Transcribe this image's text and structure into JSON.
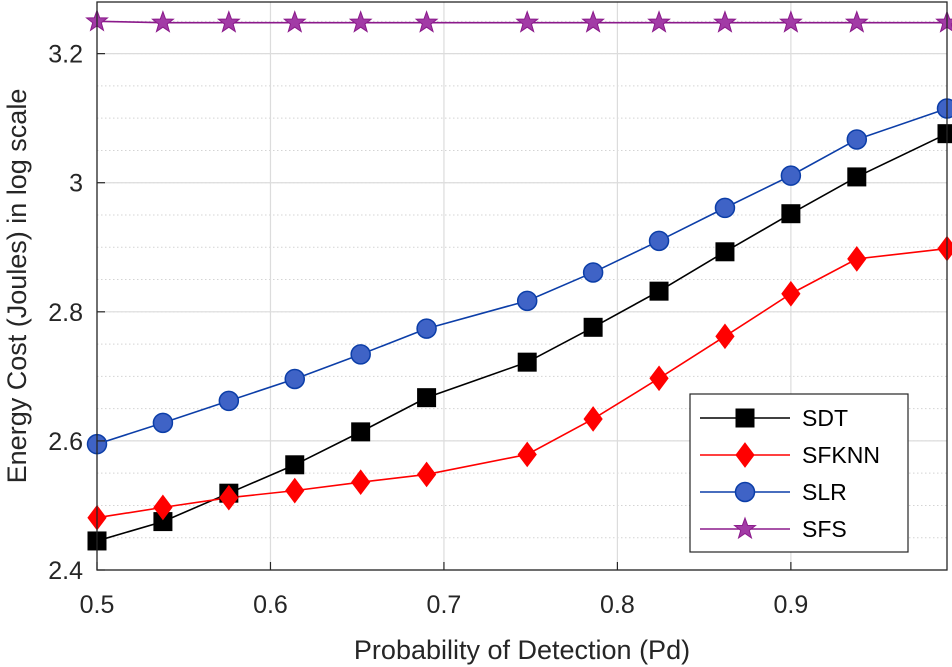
{
  "chart_data": {
    "type": "line",
    "title": "",
    "xlabel": "Probability of Detection (Pd)",
    "ylabel": "Energy Cost (Joules) in log scale",
    "xlim": [
      0.5,
      0.99
    ],
    "ylim": [
      2.4,
      3.28
    ],
    "xticks": [
      0.5,
      0.6,
      0.7,
      0.8,
      0.9
    ],
    "xtick_labels": [
      "0.5",
      "0.6",
      "0.7",
      "0.8",
      "0.9"
    ],
    "yticks": [
      2.4,
      2.6,
      2.8,
      3.0,
      3.2
    ],
    "ytick_labels": [
      "2.4",
      "2.6",
      "2.8",
      "3",
      "3.2"
    ],
    "grid": true,
    "minor_grid": true,
    "legend_position": "bottom-right",
    "x": [
      0.5,
      0.538,
      0.576,
      0.614,
      0.652,
      0.69,
      0.748,
      0.786,
      0.824,
      0.862,
      0.9,
      0.938,
      0.99
    ],
    "series": [
      {
        "name": "SDT",
        "color": "#000000",
        "marker": "square",
        "values": [
          2.445,
          2.475,
          2.519,
          2.563,
          2.614,
          2.667,
          2.722,
          2.776,
          2.832,
          2.893,
          2.952,
          3.009,
          3.076
        ]
      },
      {
        "name": "SFKNN",
        "color": "#ff0000",
        "marker": "diamond",
        "values": [
          2.481,
          2.497,
          2.512,
          2.523,
          2.536,
          2.548,
          2.579,
          2.634,
          2.697,
          2.762,
          2.828,
          2.882,
          2.898
        ]
      },
      {
        "name": "SLR",
        "color": "#0c3ea8",
        "marker": "circle",
        "values": [
          2.595,
          2.628,
          2.662,
          2.696,
          2.734,
          2.774,
          2.817,
          2.861,
          2.91,
          2.961,
          3.011,
          3.067,
          3.115
        ]
      },
      {
        "name": "SFS",
        "color": "#8b1a8b",
        "marker": "star",
        "values": [
          3.25,
          3.248,
          3.248,
          3.248,
          3.248,
          3.248,
          3.248,
          3.248,
          3.248,
          3.248,
          3.248,
          3.248,
          3.248
        ]
      }
    ]
  }
}
